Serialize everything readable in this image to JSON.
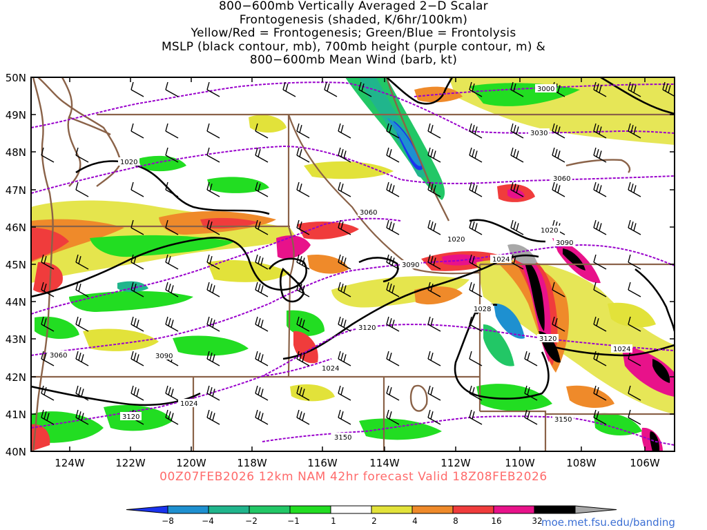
{
  "title": {
    "line1": "800−600mb Vertically Averaged 2−D Scalar",
    "line2": "Frontogenesis (shaded, K/6hr/100km)",
    "line3": "Yellow/Red = Frontogenesis;  Green/Blue = Frontolysis",
    "line4": "MSLP (black contour, mb), 700mb height (purple contour, m) &",
    "line5": "800−600mb Mean Wind (barb, kt)"
  },
  "valid_line": "00Z07FEB2026 12km NAM 42hr forecast Valid 18Z08FEB2026",
  "credit": "moe.met.fsu.edu/banding",
  "map": {
    "lat_labels": [
      "50N",
      "49N",
      "48N",
      "47N",
      "46N",
      "45N",
      "44N",
      "43N",
      "42N",
      "41N",
      "40N"
    ],
    "lon_labels": [
      "124W",
      "122W",
      "120W",
      "118W",
      "116W",
      "114W",
      "112W",
      "110W",
      "108W",
      "106W"
    ],
    "colors": {
      "coastline": "#8a6248",
      "state_border": "#8a6248",
      "mslp_contour": "#000000",
      "height_contour": "#9900cc"
    },
    "mslp_labels": [
      "1020",
      "1020",
      "1020",
      "1024",
      "1028",
      "1024",
      "1024",
      "1024"
    ],
    "height_labels": [
      "3000",
      "3030",
      "3060",
      "3060",
      "3090",
      "3090",
      "3060",
      "3090",
      "3120",
      "3120",
      "3120",
      "3150",
      "3150"
    ]
  },
  "colorbar": {
    "labels": [
      "−8",
      "−4",
      "−2",
      "−1",
      "1",
      "2",
      "4",
      "8",
      "16",
      "32"
    ],
    "colors": [
      "#1a33ee",
      "#1e90d0",
      "#20b58c",
      "#22c766",
      "#22dd22",
      "#ffffff",
      "#e2e23a",
      "#ef8a2a",
      "#f03c3c",
      "#e8128a",
      "#000000",
      "#a8a8a8"
    ]
  }
}
